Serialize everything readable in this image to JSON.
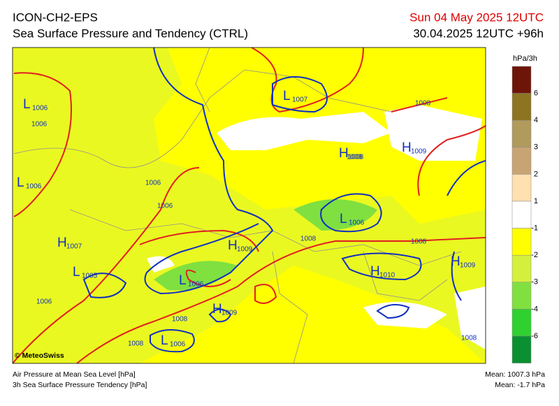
{
  "header": {
    "model": "ICON-CH2-EPS",
    "title": "Sea Surface Pressure and Tendency (CTRL)",
    "valid_time": "Sun 04 May 2025 12UTC",
    "run": "30.04.2025 12UTC +96h"
  },
  "legend": {
    "unit": "hPa/3h",
    "ticks": [
      6,
      4,
      3,
      2,
      1,
      -1,
      -2,
      -3,
      -4,
      -6
    ]
  },
  "map": {
    "centers": [
      {
        "letter": "L",
        "value": 1006
      },
      {
        "letter": "L",
        "value": 1007
      },
      {
        "letter": "H",
        "value": 1008
      },
      {
        "letter": "H",
        "value": 1009
      },
      {
        "letter": "L",
        "value": 1006
      },
      {
        "letter": "L",
        "value": 1006
      },
      {
        "letter": "H",
        "value": 1007
      },
      {
        "letter": "H",
        "value": 1009
      },
      {
        "letter": "L",
        "value": 1005
      },
      {
        "letter": "L",
        "value": 1006
      },
      {
        "letter": "H",
        "value": 1010
      },
      {
        "letter": "H",
        "value": 1009
      },
      {
        "letter": "H",
        "value": 1009
      },
      {
        "letter": "L",
        "value": 1006
      }
    ],
    "isobar_labels": [
      1006,
      1006,
      1006,
      1006,
      1008,
      1008,
      1008,
      1008,
      1008,
      1008,
      1008
    ],
    "credit": "© MeteoSwiss"
  },
  "footer": {
    "line1": "Air Pressure at Mean Sea Level [hPa]",
    "line2": "3h Sea Surface Pressure Tendency [hPa]",
    "mean_pressure": "Mean: 1007.3 hPa",
    "mean_tendency": "Mean:  -1.7 hPa"
  }
}
